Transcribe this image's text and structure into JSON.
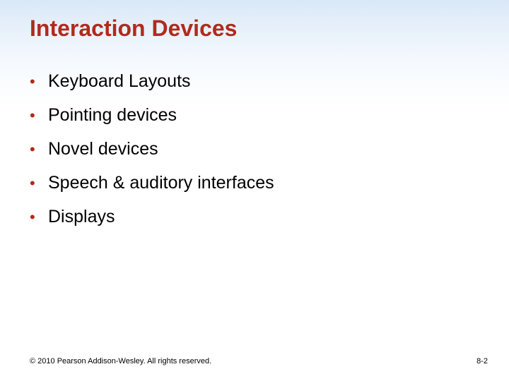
{
  "slide": {
    "title": "Interaction Devices",
    "title_color": "#b02a1e",
    "title_fontsize": 32,
    "bullets": [
      {
        "text": "Keyboard Layouts"
      },
      {
        "text": "Pointing devices"
      },
      {
        "text": "Novel devices"
      },
      {
        "text": "Speech & auditory interfaces"
      },
      {
        "text": "Displays"
      }
    ],
    "bullet_color": "#b02a1e",
    "bullet_text_color": "#000000",
    "bullet_fontsize": 25,
    "background_gradient": [
      "#d9e8f7",
      "#ffffff"
    ],
    "footer": {
      "copyright": "© 2010 Pearson Addison-Wesley. All rights reserved.",
      "page_number": "8-2",
      "fontsize": 11
    }
  }
}
